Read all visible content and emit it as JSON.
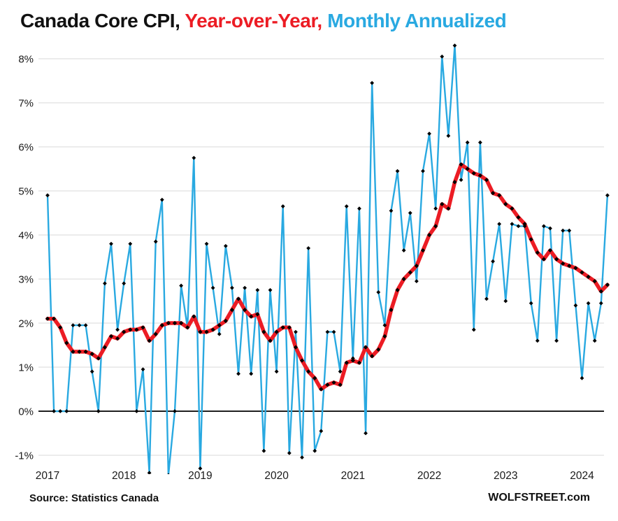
{
  "title": {
    "part1": "Canada Core CPI,",
    "part2": " Year-over-Year,",
    "part3": " Monthly Annualized"
  },
  "footer": {
    "source": "Source: Statistics Canada",
    "brand": "WOLFSTREET.com"
  },
  "colors": {
    "yoy_red": "#ec1c24",
    "monthly_blue": "#29a9e1",
    "marker_black": "#000000",
    "gridline_gray": "#d9d9d9",
    "zero_axis_black": "#000000"
  },
  "chart_data": {
    "type": "line",
    "title": "Canada Core CPI, Year-over-Year, Monthly Annualized",
    "legend_position": "in-title",
    "grid": true,
    "x_axis": {
      "start_month": "2017-01",
      "end_month": "2024-05",
      "months_count": 89,
      "tick_labels": [
        "2017",
        "2018",
        "2019",
        "2020",
        "2021",
        "2022",
        "2023",
        "2024"
      ]
    },
    "y_axis": {
      "min": -1,
      "max": 8,
      "unit": "%",
      "tick_labels": [
        "8%",
        "7%",
        "6%",
        "5%",
        "4%",
        "3%",
        "2%",
        "1%",
        "0%",
        "-1%"
      ],
      "tick_values": [
        8,
        7,
        6,
        5,
        4,
        3,
        2,
        1,
        0,
        -1
      ],
      "zero_line": "black"
    },
    "series": [
      {
        "name": "Monthly Annualized",
        "color": "#29a9e1",
        "line_width": 2.4,
        "marker": "black-diamond",
        "values": [
          4.9,
          0,
          0,
          0,
          1.95,
          1.95,
          1.95,
          0.9,
          0,
          2.9,
          3.8,
          1.85,
          2.9,
          3.8,
          0,
          0.95,
          -1.4,
          3.85,
          4.8,
          -1.45,
          0,
          2.85,
          1.9,
          5.75,
          -1.3,
          3.8,
          2.8,
          1.75,
          3.75,
          2.8,
          0.85,
          2.8,
          0.85,
          2.75,
          -0.9,
          2.75,
          0.9,
          4.65,
          -0.95,
          1.8,
          -1.05,
          3.7,
          -0.9,
          -0.45,
          1.8,
          1.8,
          0.9,
          4.65,
          1.2,
          4.6,
          -0.5,
          7.45,
          2.7,
          1.95,
          4.55,
          5.45,
          3.65,
          4.5,
          2.95,
          5.45,
          6.3,
          4.6,
          8.05,
          6.25,
          8.3,
          5.25,
          6.1,
          1.85,
          6.1,
          2.55,
          3.4,
          4.25,
          2.5,
          4.25,
          4.2,
          4.2,
          2.45,
          1.6,
          4.2,
          4.15,
          1.6,
          4.1,
          4.1,
          2.4,
          0.75,
          2.45,
          1.6,
          2.45,
          4.9
        ]
      },
      {
        "name": "Year-over-Year",
        "color": "#ec1c24",
        "line_width": 5.5,
        "marker": "black-diamond",
        "values": [
          2.1,
          2.1,
          1.9,
          1.55,
          1.35,
          1.35,
          1.35,
          1.3,
          1.2,
          1.45,
          1.7,
          1.65,
          1.8,
          1.85,
          1.85,
          1.9,
          1.6,
          1.75,
          1.95,
          2.0,
          2.0,
          2.0,
          1.9,
          2.15,
          1.8,
          1.8,
          1.85,
          1.95,
          2.05,
          2.3,
          2.55,
          2.3,
          2.15,
          2.2,
          1.8,
          1.6,
          1.8,
          1.9,
          1.9,
          1.45,
          1.15,
          0.9,
          0.75,
          0.5,
          0.6,
          0.65,
          0.6,
          1.1,
          1.15,
          1.1,
          1.45,
          1.25,
          1.4,
          1.7,
          2.3,
          2.75,
          3.0,
          3.15,
          3.3,
          3.65,
          4.0,
          4.2,
          4.7,
          4.6,
          5.2,
          5.6,
          5.5,
          5.4,
          5.35,
          5.25,
          4.95,
          4.9,
          4.7,
          4.6,
          4.4,
          4.25,
          3.9,
          3.6,
          3.45,
          3.65,
          3.45,
          3.35,
          3.3,
          3.25,
          3.15,
          3.05,
          2.95,
          2.72,
          2.87
        ]
      }
    ]
  }
}
